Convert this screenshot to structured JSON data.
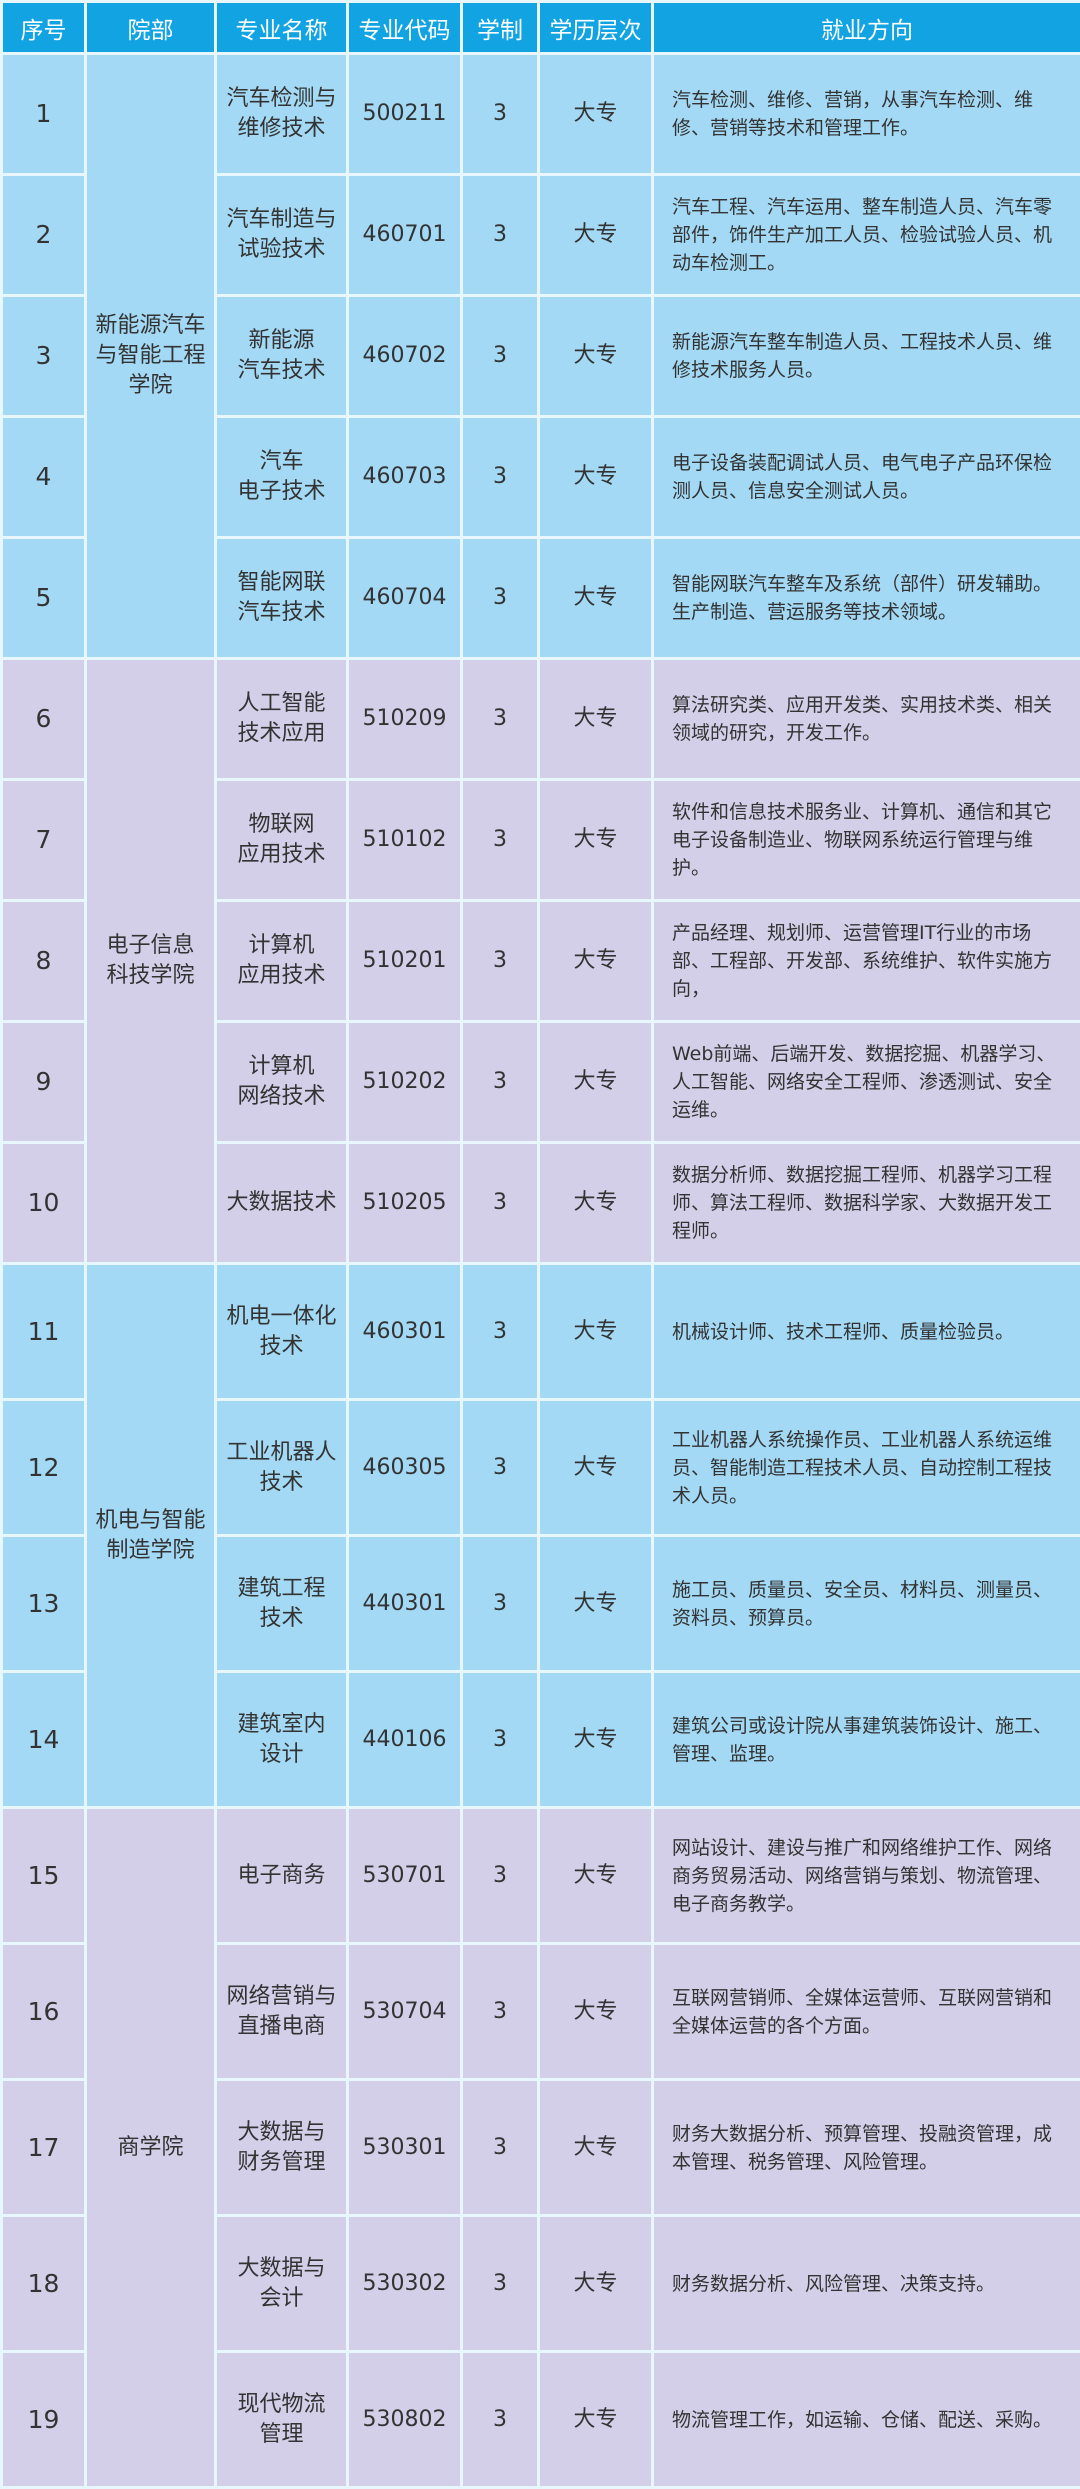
{
  "colors": {
    "header": "#12a3e2",
    "blue_row": "#a3d9f4",
    "purple_row": "#d3cfe9"
  },
  "headers": [
    "序号",
    "院部",
    "专业名称",
    "专业代码",
    "学制",
    "学历层次",
    "就业方向"
  ],
  "groups": [
    {
      "department": "新能源汽车\n与智能工程\n学院",
      "color": "blue",
      "rows": [
        {
          "no": "1",
          "major": "汽车检测与\n维修技术",
          "code": "500211",
          "years": "3",
          "level": "大专",
          "jobs": "汽车检测、维修、营销，从事汽车检测、维修、营销等技术和管理工作。"
        },
        {
          "no": "2",
          "major": "汽车制造与\n试验技术",
          "code": "460701",
          "years": "3",
          "level": "大专",
          "jobs": "汽车工程、汽车运用、整车制造人员、汽车零部件，饰件生产加工人员、检验试验人员、机动车检测工。"
        },
        {
          "no": "3",
          "major": "新能源\n汽车技术",
          "code": "460702",
          "years": "3",
          "level": "大专",
          "jobs": "新能源汽车整车制造人员、工程技术人员、维修技术服务人员。"
        },
        {
          "no": "4",
          "major": "汽车\n电子技术",
          "code": "460703",
          "years": "3",
          "level": "大专",
          "jobs": "电子设备装配调试人员、电气电子产品环保检测人员、信息安全测试人员。"
        },
        {
          "no": "5",
          "major": "智能网联\n汽车技术",
          "code": "460704",
          "years": "3",
          "level": "大专",
          "jobs": "智能网联汽车整车及系统（部件）研发辅助。生产制造、营运服务等技术领域。"
        }
      ]
    },
    {
      "department": "电子信息\n科技学院",
      "color": "purple",
      "rows": [
        {
          "no": "6",
          "major": "人工智能\n技术应用",
          "code": "510209",
          "years": "3",
          "level": "大专",
          "jobs": "算法研究类、应用开发类、实用技术类、相关领域的研究，开发工作。"
        },
        {
          "no": "7",
          "major": "物联网\n应用技术",
          "code": "510102",
          "years": "3",
          "level": "大专",
          "jobs": "软件和信息技术服务业、计算机、通信和其它电子设备制造业、物联网系统运行管理与维护。"
        },
        {
          "no": "8",
          "major": "计算机\n应用技术",
          "code": "510201",
          "years": "3",
          "level": "大专",
          "jobs": "产品经理、规划师、运营管理IT行业的市场部、工程部、开发部、系统维护、软件实施方向，"
        },
        {
          "no": "9",
          "major": "计算机\n网络技术",
          "code": "510202",
          "years": "3",
          "level": "大专",
          "jobs": "Web前端、后端开发、数据挖掘、机器学习、人工智能、网络安全工程师、渗透测试、安全运维。"
        },
        {
          "no": "10",
          "major": "大数据技术",
          "code": "510205",
          "years": "3",
          "level": "大专",
          "jobs": "数据分析师、数据挖掘工程师、机器学习工程师、算法工程师、数据科学家、大数据开发工程师。"
        }
      ]
    },
    {
      "department": "机电与智能\n制造学院",
      "color": "blue",
      "rows": [
        {
          "no": "11",
          "major": "机电一体化\n技术",
          "code": "460301",
          "years": "3",
          "level": "大专",
          "jobs": "机械设计师、技术工程师、质量检验员。"
        },
        {
          "no": "12",
          "major": "工业机器人\n技术",
          "code": "460305",
          "years": "3",
          "level": "大专",
          "jobs": "工业机器人系统操作员、工业机器人系统运维员、智能制造工程技术人员、自动控制工程技术人员。"
        },
        {
          "no": "13",
          "major": "建筑工程\n技术",
          "code": "440301",
          "years": "3",
          "level": "大专",
          "jobs": "施工员、质量员、安全员、材料员、测量员、资料员、预算员。"
        },
        {
          "no": "14",
          "major": "建筑室内\n设计",
          "code": "440106",
          "years": "3",
          "level": "大专",
          "jobs": "建筑公司或设计院从事建筑装饰设计、施工、管理、监理。"
        }
      ]
    },
    {
      "department": "商学院",
      "color": "purple",
      "rows": [
        {
          "no": "15",
          "major": "电子商务",
          "code": "530701",
          "years": "3",
          "level": "大专",
          "jobs": "网站设计、建设与推广和网络维护工作、网络商务贸易活动、网络营销与策划、物流管理、电子商务教学。"
        },
        {
          "no": "16",
          "major": "网络营销与\n直播电商",
          "code": "530704",
          "years": "3",
          "level": "大专",
          "jobs": "互联网营销师、全媒体运营师、互联网营销和全媒体运营的各个方面。"
        },
        {
          "no": "17",
          "major": "大数据与\n财务管理",
          "code": "530301",
          "years": "3",
          "level": "大专",
          "jobs": "财务大数据分析、预算管理、投融资管理，成本管理、税务管理、风险管理。"
        },
        {
          "no": "18",
          "major": "大数据与\n会计",
          "code": "530302",
          "years": "3",
          "level": "大专",
          "jobs": "财务数据分析、风险管理、决策支持。"
        },
        {
          "no": "19",
          "major": "现代物流\n管理",
          "code": "530802",
          "years": "3",
          "level": "大专",
          "jobs": "物流管理工作，如运输、仓储、配送、采购。"
        }
      ]
    }
  ]
}
